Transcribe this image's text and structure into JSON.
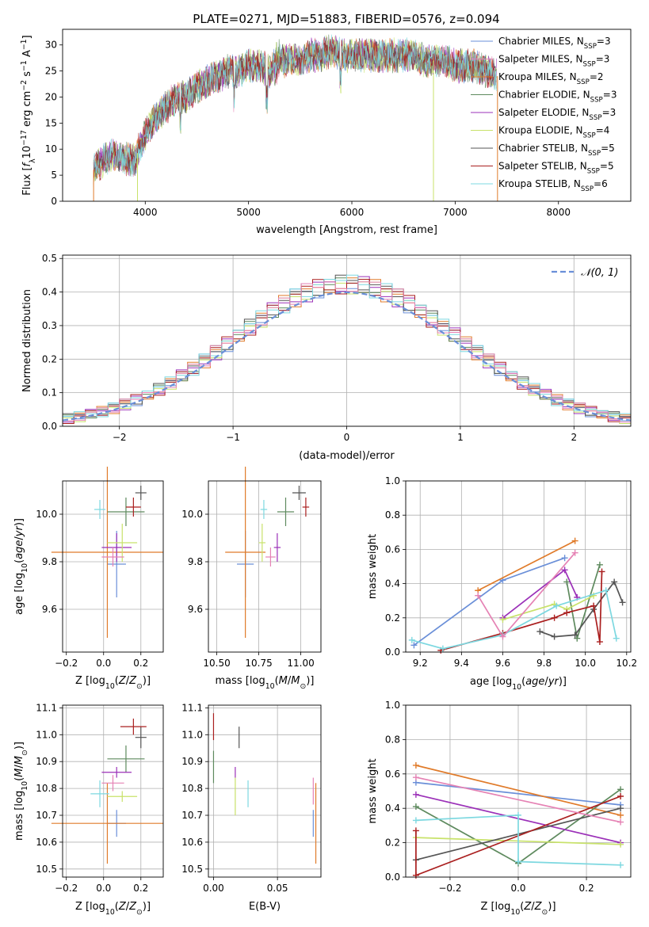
{
  "figure": {
    "title": "PLATE=0271, MJD=51883, FIBERID=0576, z=0.094"
  },
  "colors": [
    "#6a8fd8",
    "#e07b2a",
    "#5e8a5e",
    "#9b30b8",
    "#c8e26a",
    "#555555",
    "#aa1f1f",
    "#7dd8e0",
    "#e582b4"
  ],
  "chart_data": [
    {
      "id": "spectrum",
      "type": "line",
      "title": "PLATE=0271, MJD=51883, FIBERID=0576, z=0.094",
      "xlabel": "wavelength [Angstrom, rest frame]",
      "ylabel": "Flux [fλ10⁻¹⁷ erg cm⁻² s⁻¹ A⁻¹]",
      "xlim": [
        3200,
        8700
      ],
      "ylim": [
        0,
        33
      ],
      "xticks": [
        4000,
        5000,
        6000,
        7000,
        8000
      ],
      "yticks": [
        0,
        5,
        10,
        15,
        20,
        25,
        30
      ],
      "grid": false,
      "legend_placement": "upper-right",
      "series": [
        {
          "name": "Chabrier MILES, N_SSP=3",
          "color_index": 0
        },
        {
          "name": "Salpeter MILES, N_SSP=3",
          "color_index": 8
        },
        {
          "name": "Kroupa MILES, N_SSP=2",
          "color_index": 1
        },
        {
          "name": "Chabrier ELODIE, N_SSP=3",
          "color_index": 2
        },
        {
          "name": "Salpeter ELODIE, N_SSP=3",
          "color_index": 3
        },
        {
          "name": "Kroupa ELODIE, N_SSP=4",
          "color_index": 4
        },
        {
          "name": "Chabrier STELIB, N_SSP=5",
          "color_index": 5
        },
        {
          "name": "Salpeter STELIB, N_SSP=5",
          "color_index": 6
        },
        {
          "name": "Kroupa STELIB, N_SSP=6",
          "color_index": 7
        }
      ],
      "continuum": {
        "x": [
          3500,
          3600,
          3700,
          3800,
          3900,
          4000,
          4100,
          4200,
          4300,
          4400,
          4500,
          4600,
          4700,
          4800,
          4900,
          5000,
          5100,
          5200,
          5300,
          5400,
          5500,
          5600,
          5700,
          5800,
          5900,
          6000,
          6100,
          6200,
          6300,
          6400,
          6500,
          6600,
          6700,
          6800,
          6900,
          7000,
          7100,
          7200,
          7300,
          7400
        ],
        "y": [
          6,
          8,
          9,
          8,
          8,
          13,
          16,
          18,
          20,
          20,
          22,
          23,
          24,
          25,
          25,
          26,
          26,
          25,
          27,
          27,
          27,
          28,
          28,
          29,
          28,
          28,
          28,
          28,
          28,
          28,
          28,
          28,
          27,
          27,
          27,
          26,
          26,
          26,
          25,
          24
        ]
      },
      "dips": [
        {
          "x": 3500,
          "y": 0,
          "color_index": 1
        },
        {
          "x": 3925,
          "y": 0,
          "color_index": 4
        },
        {
          "x": 6790,
          "y": 0,
          "color_index": 4
        },
        {
          "x": 7410,
          "y": 0,
          "color_index": 1
        }
      ]
    },
    {
      "id": "residual_histogram",
      "type": "histogram",
      "xlabel": "(data-model)/error",
      "ylabel": "Normed distribution",
      "xlim": [
        -2.5,
        2.5
      ],
      "ylim": [
        0,
        0.51
      ],
      "xticks": [
        -2,
        -1,
        0,
        1,
        2
      ],
      "yticks": [
        0.0,
        0.1,
        0.2,
        0.3,
        0.4,
        0.5
      ],
      "grid": true,
      "bin_width": 0.1,
      "reference_curve": {
        "name": "𝒩(0, 1)",
        "type": "normal",
        "mean": 0,
        "sigma": 1,
        "style": "dashed"
      },
      "legend_placement": "upper-right"
    },
    {
      "id": "age_vs_Z",
      "type": "errorbar",
      "xlabel": "Z [log10(Z/Z⊙)]",
      "ylabel": "age  [log10(age/yr)]",
      "xlim": [
        -0.22,
        0.32
      ],
      "ylim": [
        9.42,
        10.14
      ],
      "xticks": [
        -0.2,
        0.0,
        0.2
      ],
      "yticks": [
        9.6,
        9.8,
        10.0
      ],
      "grid": true,
      "points": [
        {
          "x": 0.07,
          "y": 9.79,
          "xerr": 0.05,
          "yerr": 0.14,
          "color_index": 0
        },
        {
          "x": 0.02,
          "y": 9.84,
          "xerr": 0.3,
          "yerr": 0.36,
          "color_index": 1
        },
        {
          "x": 0.12,
          "y": 10.01,
          "xerr": 0.1,
          "yerr": 0.06,
          "color_index": 2
        },
        {
          "x": 0.07,
          "y": 9.86,
          "xerr": 0.08,
          "yerr": 0.06,
          "color_index": 3
        },
        {
          "x": 0.1,
          "y": 9.88,
          "xerr": 0.08,
          "yerr": 0.08,
          "color_index": 4
        },
        {
          "x": 0.2,
          "y": 10.09,
          "xerr": 0.03,
          "yerr": 0.03,
          "color_index": 5
        },
        {
          "x": 0.16,
          "y": 10.03,
          "xerr": 0.04,
          "yerr": 0.04,
          "color_index": 6
        },
        {
          "x": -0.02,
          "y": 10.02,
          "xerr": 0.03,
          "yerr": 0.04,
          "color_index": 7
        },
        {
          "x": 0.05,
          "y": 9.82,
          "xerr": 0.06,
          "yerr": 0.04,
          "color_index": 8
        }
      ]
    },
    {
      "id": "age_vs_mass",
      "type": "errorbar",
      "xlabel": "mass [log10(M/M⊙)]",
      "ylabel": "",
      "xlim": [
        10.45,
        11.12
      ],
      "ylim": [
        9.42,
        10.14
      ],
      "xticks": [
        10.5,
        10.75,
        11.0
      ],
      "xticklabels": [
        "10.50",
        "10.75",
        "11.00"
      ],
      "yticks": [
        9.6,
        9.8,
        10.0
      ],
      "grid": true,
      "points": [
        {
          "x": 10.67,
          "y": 9.79,
          "xerr": 0.05,
          "yerr": 0.14,
          "color_index": 0
        },
        {
          "x": 10.67,
          "y": 9.84,
          "xerr": 0.12,
          "yerr": 0.36,
          "color_index": 1
        },
        {
          "x": 10.91,
          "y": 10.01,
          "xerr": 0.05,
          "yerr": 0.06,
          "color_index": 2
        },
        {
          "x": 10.86,
          "y": 9.86,
          "xerr": 0.02,
          "yerr": 0.06,
          "color_index": 3
        },
        {
          "x": 10.77,
          "y": 9.88,
          "xerr": 0.02,
          "yerr": 0.08,
          "color_index": 4
        },
        {
          "x": 10.99,
          "y": 10.09,
          "xerr": 0.04,
          "yerr": 0.03,
          "color_index": 5
        },
        {
          "x": 11.03,
          "y": 10.03,
          "xerr": 0.02,
          "yerr": 0.04,
          "color_index": 6
        },
        {
          "x": 10.78,
          "y": 10.02,
          "xerr": 0.02,
          "yerr": 0.04,
          "color_index": 7
        },
        {
          "x": 10.82,
          "y": 9.82,
          "xerr": 0.03,
          "yerr": 0.04,
          "color_index": 8
        }
      ]
    },
    {
      "id": "massweight_vs_age",
      "type": "line",
      "xlabel": "age  [log10(age/yr)]",
      "ylabel": "mass weight",
      "xlim": [
        9.13,
        10.22
      ],
      "ylim": [
        0,
        1.0
      ],
      "xticks": [
        9.2,
        9.4,
        9.6,
        9.8,
        10.0,
        10.2
      ],
      "yticks": [
        0.0,
        0.2,
        0.4,
        0.6,
        0.8,
        1.0
      ],
      "grid": true,
      "series": [
        {
          "color_index": 0,
          "x": [
            9.17,
            9.6,
            9.9
          ],
          "y": [
            0.04,
            0.42,
            0.55
          ]
        },
        {
          "color_index": 1,
          "x": [
            9.48,
            9.95
          ],
          "y": [
            0.36,
            0.65
          ]
        },
        {
          "color_index": 2,
          "x": [
            9.91,
            9.96,
            10.07
          ],
          "y": [
            0.41,
            0.08,
            0.51
          ]
        },
        {
          "color_index": 3,
          "x": [
            9.6,
            9.9,
            9.96
          ],
          "y": [
            0.2,
            0.48,
            0.32
          ]
        },
        {
          "color_index": 4,
          "x": [
            9.6,
            9.85,
            9.91,
            10.04
          ],
          "y": [
            0.19,
            0.28,
            0.25,
            0.33
          ]
        },
        {
          "color_index": 5,
          "x": [
            9.78,
            9.85,
            9.95,
            10.04,
            10.14,
            10.18
          ],
          "y": [
            0.12,
            0.09,
            0.1,
            0.25,
            0.41,
            0.29
          ]
        },
        {
          "color_index": 6,
          "x": [
            9.3,
            9.6,
            9.85,
            9.91,
            10.04,
            10.07,
            10.08
          ],
          "y": [
            0.01,
            0.11,
            0.2,
            0.23,
            0.27,
            0.06,
            0.47
          ]
        },
        {
          "color_index": 7,
          "x": [
            9.16,
            9.31,
            9.6,
            9.86,
            10.1,
            10.15
          ],
          "y": [
            0.07,
            0.02,
            0.1,
            0.27,
            0.36,
            0.08
          ]
        },
        {
          "color_index": 8,
          "x": [
            9.48,
            9.6,
            9.95
          ],
          "y": [
            0.33,
            0.09,
            0.58
          ]
        }
      ]
    },
    {
      "id": "mass_vs_Z",
      "type": "errorbar",
      "xlabel": "Z [log10(Z/Z⊙)]",
      "ylabel": "mass [log10(M/M⊙)]",
      "xlim": [
        -0.22,
        0.32
      ],
      "ylim": [
        10.47,
        11.11
      ],
      "xticks": [
        -0.2,
        0.0,
        0.2
      ],
      "yticks": [
        10.5,
        10.6,
        10.7,
        10.8,
        10.9,
        11.0,
        11.1
      ],
      "grid": true,
      "points": [
        {
          "x": 0.07,
          "y": 10.67,
          "xerr": 0.05,
          "yerr": 0.05,
          "color_index": 0
        },
        {
          "x": 0.02,
          "y": 10.67,
          "xerr": 0.3,
          "yerr": 0.15,
          "color_index": 1
        },
        {
          "x": 0.12,
          "y": 10.91,
          "xerr": 0.1,
          "yerr": 0.05,
          "color_index": 2
        },
        {
          "x": 0.07,
          "y": 10.86,
          "xerr": 0.08,
          "yerr": 0.02,
          "color_index": 3
        },
        {
          "x": 0.1,
          "y": 10.77,
          "xerr": 0.08,
          "yerr": 0.02,
          "color_index": 4
        },
        {
          "x": 0.2,
          "y": 10.99,
          "xerr": 0.03,
          "yerr": 0.04,
          "color_index": 5
        },
        {
          "x": 0.16,
          "y": 11.03,
          "xerr": 0.07,
          "yerr": 0.03,
          "color_index": 6
        },
        {
          "x": -0.02,
          "y": 10.78,
          "xerr": 0.05,
          "yerr": 0.05,
          "color_index": 7
        },
        {
          "x": 0.05,
          "y": 10.82,
          "xerr": 0.06,
          "yerr": 0.03,
          "color_index": 8
        }
      ]
    },
    {
      "id": "mass_vs_ebv",
      "type": "errorbar",
      "xlabel": "E(B-V)",
      "ylabel": "",
      "xlim": [
        -0.004,
        0.084
      ],
      "ylim": [
        10.47,
        11.11
      ],
      "xticks": [
        0.0,
        0.05
      ],
      "xticklabels": [
        "0.00",
        "0.05"
      ],
      "yticks": [
        10.5,
        10.6,
        10.7,
        10.8,
        10.9,
        11.0,
        11.1
      ],
      "grid": true,
      "points": [
        {
          "x": 0.078,
          "y": 10.67,
          "xerr": 0,
          "yerr": 0.05,
          "color_index": 0
        },
        {
          "x": 0.08,
          "y": 10.67,
          "xerr": 0,
          "yerr": 0.15,
          "color_index": 1
        },
        {
          "x": 0.0,
          "y": 10.88,
          "xerr": 0,
          "yerr": 0.06,
          "color_index": 2
        },
        {
          "x": 0.017,
          "y": 10.86,
          "xerr": 0,
          "yerr": 0.02,
          "color_index": 3
        },
        {
          "x": 0.017,
          "y": 10.77,
          "xerr": 0,
          "yerr": 0.07,
          "color_index": 4
        },
        {
          "x": 0.02,
          "y": 10.99,
          "xerr": 0,
          "yerr": 0.04,
          "color_index": 5
        },
        {
          "x": 0.0,
          "y": 11.03,
          "xerr": 0,
          "yerr": 0.05,
          "color_index": 6
        },
        {
          "x": 0.027,
          "y": 10.78,
          "xerr": 0,
          "yerr": 0.05,
          "color_index": 7
        },
        {
          "x": 0.078,
          "y": 10.79,
          "xerr": 0,
          "yerr": 0.05,
          "color_index": 8
        }
      ]
    },
    {
      "id": "massweight_vs_Z",
      "type": "line",
      "xlabel": "Z [log10(Z/Z⊙)]",
      "ylabel": "mass weight",
      "xlim": [
        -0.33,
        0.33
      ],
      "ylim": [
        0,
        1.0
      ],
      "xticks": [
        -0.2,
        0.0,
        0.2
      ],
      "yticks": [
        0.0,
        0.2,
        0.4,
        0.6,
        0.8,
        1.0
      ],
      "grid": true,
      "series": [
        {
          "color_index": 0,
          "x": [
            -0.3,
            0.3
          ],
          "y": [
            0.55,
            0.42
          ]
        },
        {
          "color_index": 1,
          "x": [
            -0.3,
            0.3
          ],
          "y": [
            0.65,
            0.36
          ]
        },
        {
          "color_index": 2,
          "x": [
            -0.3,
            0.0,
            0.3
          ],
          "y": [
            0.41,
            0.08,
            0.51
          ]
        },
        {
          "color_index": 3,
          "x": [
            -0.3,
            0.3
          ],
          "y": [
            0.48,
            0.2
          ]
        },
        {
          "color_index": 4,
          "x": [
            -0.3,
            0.3
          ],
          "y": [
            0.23,
            0.19
          ]
        },
        {
          "color_index": 5,
          "x": [
            -0.3,
            0.3
          ],
          "y": [
            0.1,
            0.4
          ]
        },
        {
          "color_index": 6,
          "x": [
            -0.3,
            -0.3,
            0.3
          ],
          "y": [
            0.27,
            0.01,
            0.47
          ]
        },
        {
          "color_index": 7,
          "x": [
            -0.3,
            0.0,
            0.0,
            0.3
          ],
          "y": [
            0.33,
            0.36,
            0.09,
            0.07
          ]
        },
        {
          "color_index": 8,
          "x": [
            -0.3,
            0.3
          ],
          "y": [
            0.58,
            0.32
          ]
        }
      ]
    }
  ]
}
